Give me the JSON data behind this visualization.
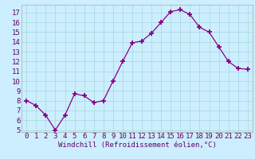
{
  "x": [
    0,
    1,
    2,
    3,
    4,
    5,
    6,
    7,
    8,
    9,
    10,
    11,
    12,
    13,
    14,
    15,
    16,
    17,
    18,
    19,
    20,
    21,
    22,
    23
  ],
  "y": [
    8,
    7.5,
    6.5,
    5.0,
    6.5,
    8.7,
    8.5,
    7.8,
    8.0,
    10.0,
    12.0,
    13.9,
    14.1,
    14.9,
    16.0,
    17.1,
    17.3,
    16.8,
    15.5,
    15.0,
    13.5,
    12.0,
    11.3,
    11.2
  ],
  "xlabel": "Windchill (Refroidissement éolien,°C)",
  "line_color": "#880088",
  "marker": "+",
  "bg_color": "#cceeff",
  "grid_color": "#aadddd",
  "tick_label_color": "#660066",
  "xlabel_color": "#660066",
  "ylim": [
    4.8,
    17.8
  ],
  "xlim": [
    -0.5,
    23.5
  ],
  "yticks": [
    5,
    6,
    7,
    8,
    9,
    10,
    11,
    12,
    13,
    14,
    15,
    16,
    17
  ],
  "xticks": [
    0,
    1,
    2,
    3,
    4,
    5,
    6,
    7,
    8,
    9,
    10,
    11,
    12,
    13,
    14,
    15,
    16,
    17,
    18,
    19,
    20,
    21,
    22,
    23
  ],
  "tick_fontsize": 6.5,
  "xlabel_fontsize": 6.5
}
